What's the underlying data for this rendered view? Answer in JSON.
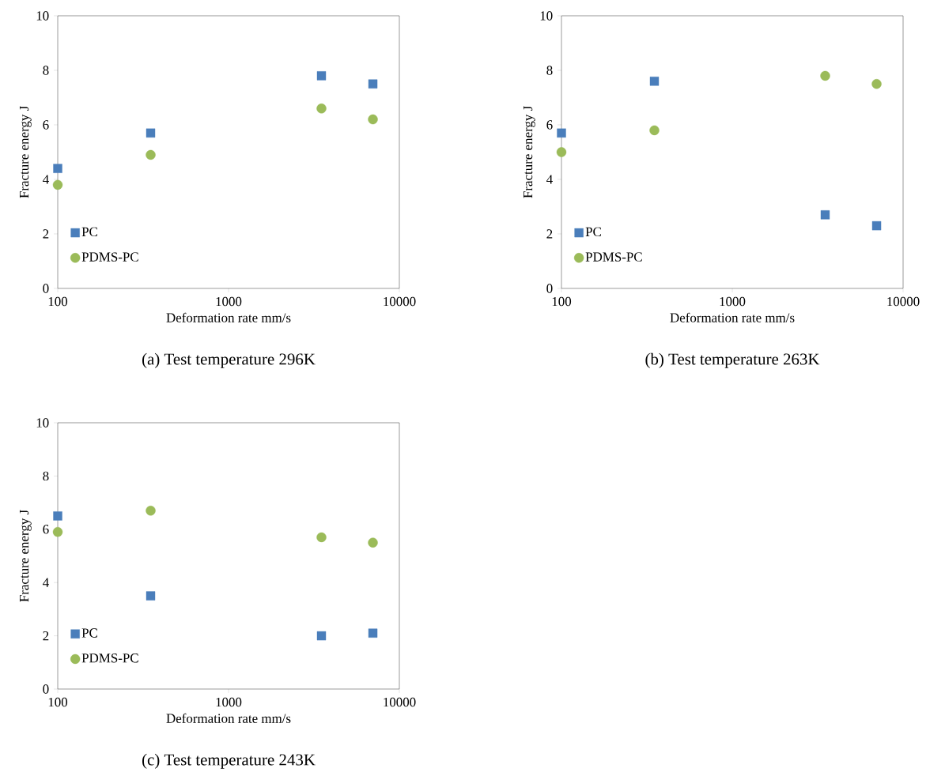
{
  "chart_data": [
    {
      "type": "scatter",
      "title": "(a) Test temperature 296K",
      "xlabel": "Deformation rate   mm/s",
      "ylabel": "Fracture energy   J",
      "log": "x",
      "xlim": [
        100,
        10000
      ],
      "xticks": [
        100,
        1000,
        10000
      ],
      "ylim": [
        0,
        10
      ],
      "yticks": [
        0,
        2,
        4,
        6,
        8,
        10
      ],
      "legend": "bottom left",
      "x": [
        100,
        350,
        3500,
        7000
      ],
      "series": [
        {
          "name": "PC",
          "color": "#4a7ebb",
          "marker": "square",
          "values": [
            4.4,
            5.7,
            7.8,
            7.5
          ]
        },
        {
          "name": "PDMS-PC",
          "color": "#9bbb59",
          "marker": "circle",
          "values": [
            3.8,
            4.9,
            6.6,
            6.2
          ]
        }
      ]
    },
    {
      "type": "scatter",
      "title": "(b) Test temperature 263K",
      "xlabel": "Deformation rate   mm/s",
      "ylabel": "Fracture energy   J",
      "log": "x",
      "xlim": [
        100,
        10000
      ],
      "xticks": [
        100,
        1000,
        10000
      ],
      "ylim": [
        0,
        10
      ],
      "yticks": [
        0,
        2,
        4,
        6,
        8,
        10
      ],
      "legend": "bottom left",
      "x": [
        100,
        350,
        3500,
        7000
      ],
      "series": [
        {
          "name": "PC",
          "color": "#4a7ebb",
          "marker": "square",
          "values": [
            5.7,
            7.6,
            2.7,
            2.3
          ]
        },
        {
          "name": "PDMS-PC",
          "color": "#9bbb59",
          "marker": "circle",
          "values": [
            5.0,
            5.8,
            7.8,
            7.5
          ]
        }
      ]
    },
    {
      "type": "scatter",
      "title": "(c) Test temperature 243K",
      "xlabel": "Deformation rate   mm/s",
      "ylabel": "Fracture energy   J",
      "log": "x",
      "xlim": [
        100,
        10000
      ],
      "xticks": [
        100,
        1000,
        10000
      ],
      "ylim": [
        0,
        10
      ],
      "yticks": [
        0,
        2,
        4,
        6,
        8,
        10
      ],
      "legend": "bottom left",
      "x": [
        100,
        350,
        3500,
        7000
      ],
      "series": [
        {
          "name": "PC",
          "color": "#4a7ebb",
          "marker": "square",
          "values": [
            6.5,
            3.5,
            2.0,
            2.1
          ]
        },
        {
          "name": "PDMS-PC",
          "color": "#9bbb59",
          "marker": "circle",
          "values": [
            5.9,
            6.7,
            5.7,
            5.5
          ]
        }
      ]
    }
  ]
}
